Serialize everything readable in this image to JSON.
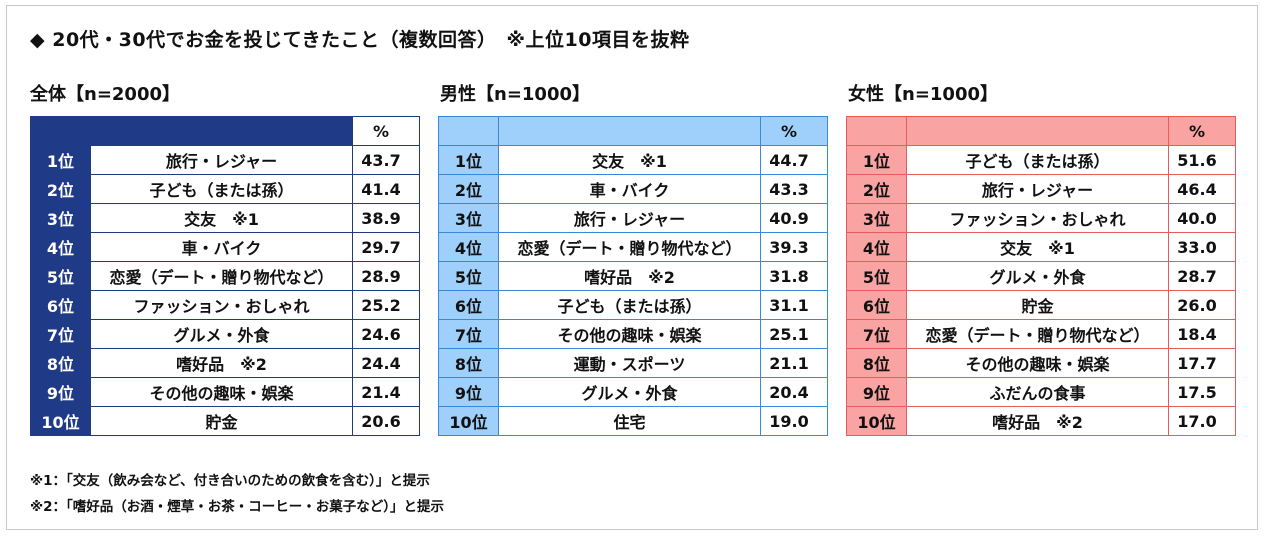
{
  "title": "◆ 20代・30代でお金を投じてきたこと（複数回答）　※上位10項目を抜粋",
  "colors": {
    "overall": "#1f3a87",
    "male": "#9fd0fb",
    "female": "#f9a3a3"
  },
  "chart_data": [
    {
      "type": "table",
      "label": "全体【n=2000】",
      "header": "%",
      "ranks": [
        "1位",
        "2位",
        "3位",
        "4位",
        "5位",
        "6位",
        "7位",
        "8位",
        "9位",
        "10位"
      ],
      "items": [
        "旅行・レジャー",
        "子ども（または孫）",
        "交友　※1",
        "車・バイク",
        "恋愛（デート・贈り物代など）",
        "ファッション・おしゃれ",
        "グルメ・外食",
        "嗜好品　※2",
        "その他の趣味・娯楽",
        "貯金"
      ],
      "values": [
        "43.7",
        "41.4",
        "38.9",
        "29.7",
        "28.9",
        "25.2",
        "24.6",
        "24.4",
        "21.4",
        "20.6"
      ]
    },
    {
      "type": "table",
      "label": "男性【n=1000】",
      "header": "%",
      "ranks": [
        "1位",
        "2位",
        "3位",
        "4位",
        "5位",
        "6位",
        "7位",
        "8位",
        "9位",
        "10位"
      ],
      "items": [
        "交友　※1",
        "車・バイク",
        "旅行・レジャー",
        "恋愛（デート・贈り物代など）",
        "嗜好品　※2",
        "子ども（または孫）",
        "その他の趣味・娯楽",
        "運動・スポーツ",
        "グルメ・外食",
        "住宅"
      ],
      "values": [
        "44.7",
        "43.3",
        "40.9",
        "39.3",
        "31.8",
        "31.1",
        "25.1",
        "21.1",
        "20.4",
        "19.0"
      ]
    },
    {
      "type": "table",
      "label": "女性【n=1000】",
      "header": "%",
      "ranks": [
        "1位",
        "2位",
        "3位",
        "4位",
        "5位",
        "6位",
        "7位",
        "8位",
        "9位",
        "10位"
      ],
      "items": [
        "子ども（または孫）",
        "旅行・レジャー",
        "ファッション・おしゃれ",
        "交友　※1",
        "グルメ・外食",
        "貯金",
        "恋愛（デート・贈り物代など）",
        "その他の趣味・娯楽",
        "ふだんの食事",
        "嗜好品　※2"
      ],
      "values": [
        "51.6",
        "46.4",
        "40.0",
        "33.0",
        "28.7",
        "26.0",
        "18.4",
        "17.7",
        "17.5",
        "17.0"
      ]
    }
  ],
  "notes": [
    "※1：「交友（飲み会など、付き合いのための飲食を含む）」と提示",
    "※2：「嗜好品（お酒・煙草・お茶・コーヒー・お菓子など）」と提示"
  ]
}
